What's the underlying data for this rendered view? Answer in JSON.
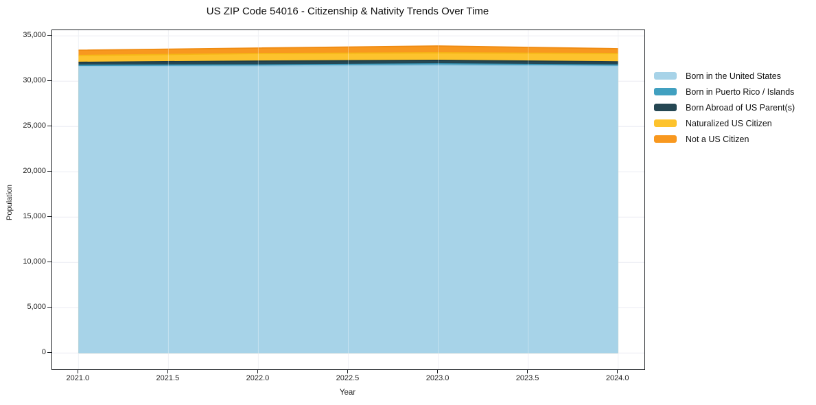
{
  "title": "US ZIP Code 54016 - Citizenship & Nativity Trends Over Time",
  "chart_data": {
    "type": "area",
    "stacked": true,
    "title": "US ZIP Code 54016 - Citizenship & Nativity Trends Over Time",
    "xlabel": "Year",
    "ylabel": "Population",
    "x": [
      2021,
      2022,
      2023,
      2024
    ],
    "series": [
      {
        "name": "Born in the United States",
        "color": "#a7d3e8",
        "edge_color": "#8fc3dc",
        "values": [
          31700,
          31700,
          31770,
          31720
        ]
      },
      {
        "name": "Born in Puerto Rico / Islands",
        "color": "#41a0c0",
        "edge_color": "#3694b6",
        "values": [
          60,
          100,
          150,
          70
        ]
      },
      {
        "name": "Born Abroad of US Parent(s)",
        "color": "#254753",
        "edge_color": "#1e3c47",
        "values": [
          320,
          420,
          380,
          350
        ]
      },
      {
        "name": "Naturalized US Citizen",
        "color": "#fdc32d",
        "edge_color": "#f5b716",
        "values": [
          760,
          830,
          830,
          910
        ]
      },
      {
        "name": "Not a US Citizen",
        "color": "#f8981f",
        "edge_color": "#ef8b12",
        "values": [
          580,
          610,
          760,
          530
        ]
      }
    ],
    "ylim": [
      0,
      35000
    ],
    "xlim": [
      2021,
      2024
    ],
    "yticks": [
      "0",
      "5,000",
      "10,000",
      "15,000",
      "20,000",
      "25,000",
      "30,000",
      "35,000"
    ],
    "ytick_values": [
      0,
      5000,
      10000,
      15000,
      20000,
      25000,
      30000,
      35000
    ],
    "xticks": [
      "2021.0",
      "2021.5",
      "2022.0",
      "2022.5",
      "2023.0",
      "2023.5",
      "2024.0"
    ],
    "xtick_values": [
      2021.0,
      2021.5,
      2022.0,
      2022.5,
      2023.0,
      2023.5,
      2024.0
    ],
    "grid": true,
    "legend_position": "right",
    "grid_color": "#eaecf2",
    "frame_color": "#16191d"
  }
}
